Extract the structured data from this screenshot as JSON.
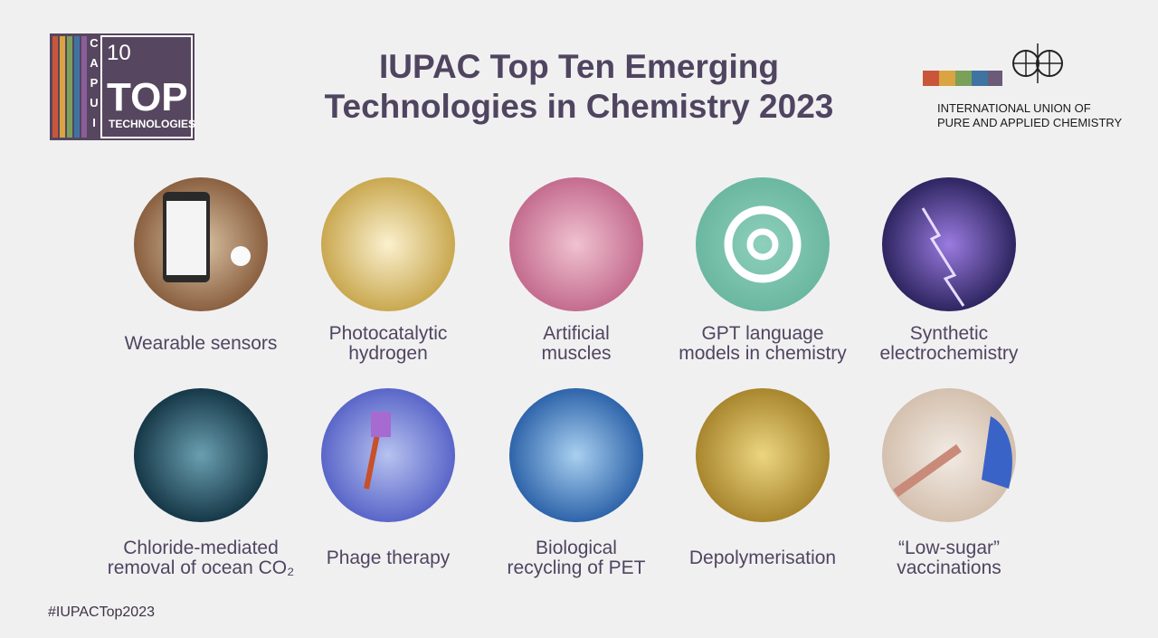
{
  "logo": {
    "number": "10",
    "word": "TOP",
    "subword": "TECHNOLOGIES",
    "letters": [
      "I",
      "U",
      "P",
      "A",
      "C"
    ]
  },
  "header": {
    "title_lines": [
      "IUPAC Top Ten Emerging",
      "Technologies in Chemistry 2023"
    ]
  },
  "organization": {
    "lines": [
      "INTERNATIONAL UNION OF",
      "PURE AND APPLIED CHEMISTRY"
    ]
  },
  "items": [
    {
      "lines": [
        "Wearable sensors"
      ]
    },
    {
      "lines": [
        "Photocatalytic",
        "hydrogen"
      ]
    },
    {
      "lines": [
        "Artificial",
        "muscles"
      ]
    },
    {
      "lines": [
        "GPT language",
        "models in chemistry"
      ]
    },
    {
      "lines": [
        "Synthetic",
        "electrochemistry"
      ]
    },
    {
      "lines": [
        "Chloride-mediated",
        "removal of ocean CO₂"
      ]
    },
    {
      "lines": [
        "Phage therapy"
      ]
    },
    {
      "lines": [
        "Biological",
        "recycling of PET"
      ]
    },
    {
      "lines": [
        "Depolymerisation"
      ]
    },
    {
      "lines": [
        "“Low-sugar”",
        "vaccinations"
      ]
    }
  ],
  "footer": {
    "hashtag": "#IUPACTop2023"
  }
}
